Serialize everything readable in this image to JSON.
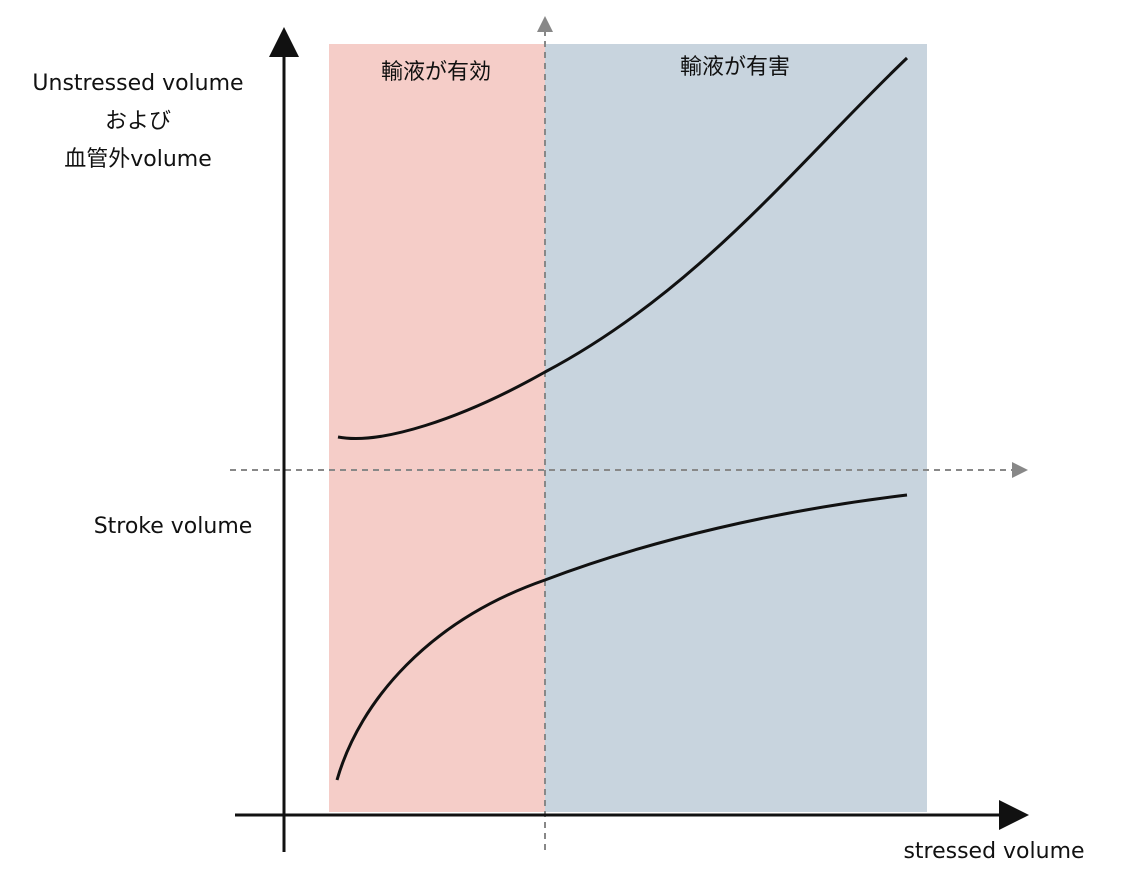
{
  "y_axis_upper": {
    "lines": [
      "Unstressed volume",
      "および",
      "血管外volume"
    ]
  },
  "y_axis_lower": {
    "label": "Stroke volume"
  },
  "x_axis": {
    "label": "stressed volume"
  },
  "regions": [
    {
      "label": "輸液が有効"
    },
    {
      "label": "輸液が有害"
    }
  ]
}
